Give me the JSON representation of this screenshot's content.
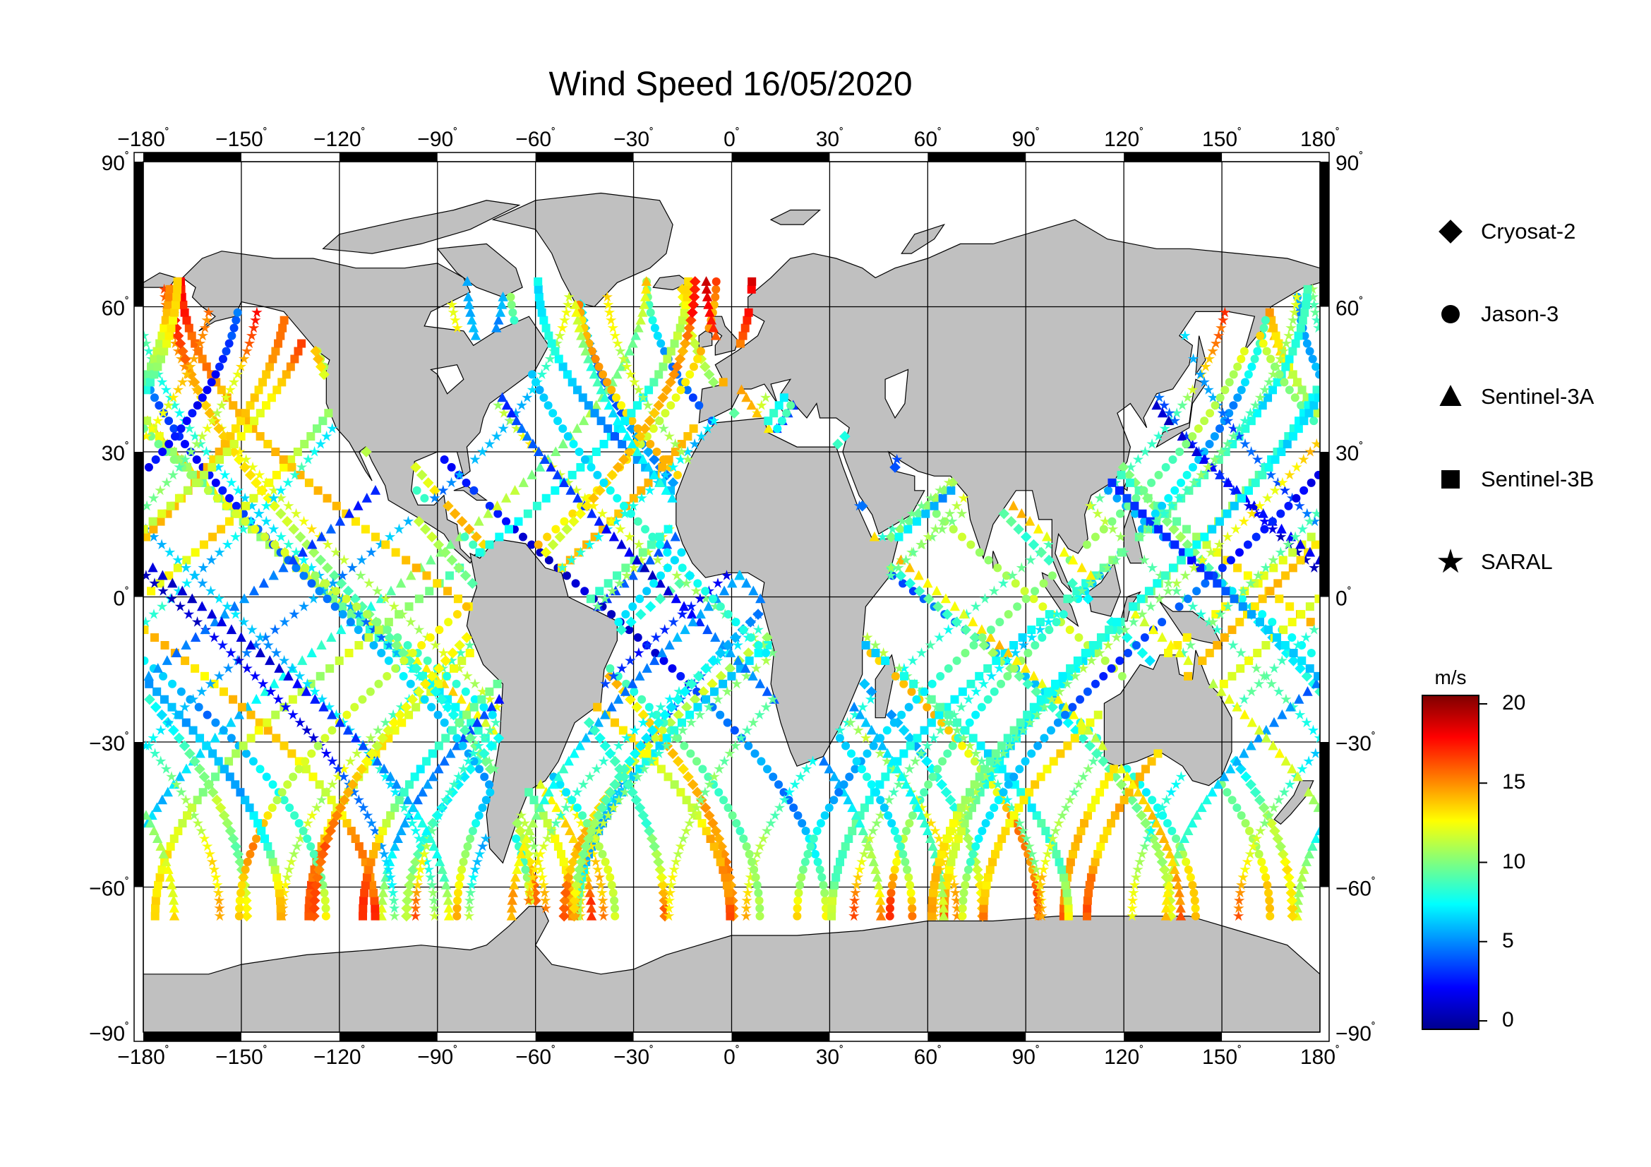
{
  "title": "Wind Speed 16/05/2020",
  "x_ticks": [
    -180,
    -150,
    -120,
    -90,
    -60,
    -30,
    0,
    30,
    60,
    90,
    120,
    150,
    180
  ],
  "y_ticks": [
    90,
    60,
    30,
    0,
    -30,
    -60,
    -90
  ],
  "legend": [
    {
      "label": "Cryosat-2",
      "icon": "diamond-icon"
    },
    {
      "label": "Jason-3",
      "icon": "circle-icon"
    },
    {
      "label": "Sentinel-3A",
      "icon": "triangle-icon"
    },
    {
      "label": "Sentinel-3B",
      "icon": "square-icon"
    },
    {
      "label": "SARAL",
      "icon": "star-icon"
    }
  ],
  "colorbar": {
    "unit": "m/s",
    "ticks": [
      20,
      15,
      10,
      5,
      0
    ],
    "range": [
      0,
      20
    ],
    "colormap": [
      "#00008f",
      "#0000ff",
      "#007fff",
      "#00ffff",
      "#7fff7f",
      "#ffff00",
      "#ff7f00",
      "#ff0000",
      "#7f0000"
    ]
  },
  "colors": {
    "land": "#c0c0c0",
    "ocean": "#ffffff",
    "frame": "#000000"
  }
}
